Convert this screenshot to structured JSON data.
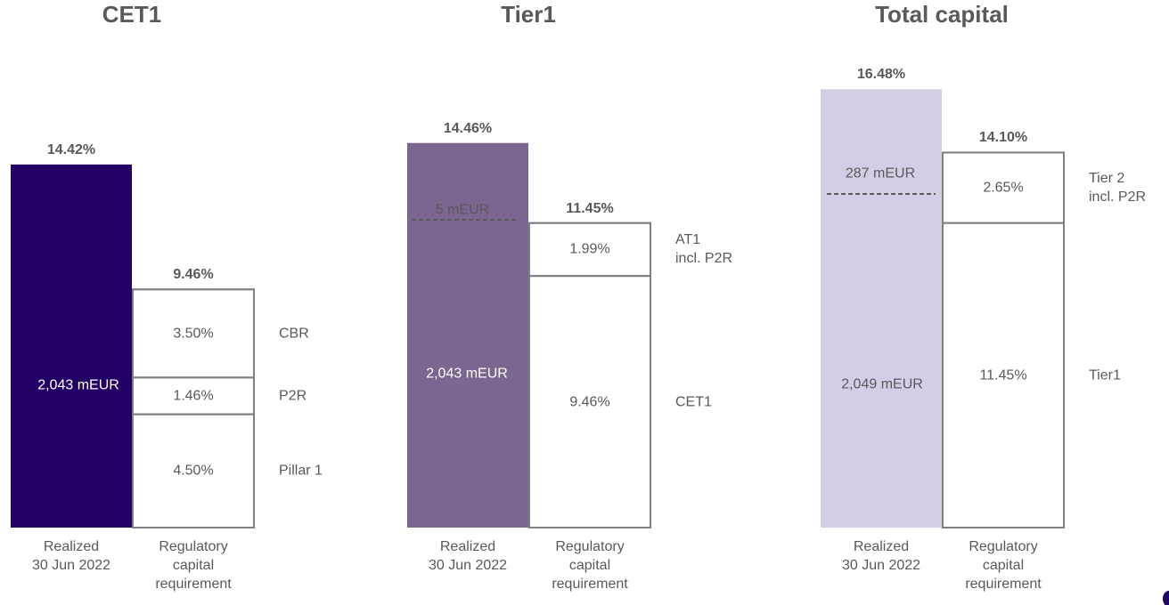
{
  "chart_data": [
    {
      "type": "bar",
      "title": "CET1",
      "color": "#230066",
      "annotation_color": "#ffffff",
      "categories": [
        "Realized\n30 Jun 2022",
        "Regulatory\ncapital\nrequirement"
      ],
      "values": [
        14.42,
        9.46
      ],
      "value_labels": [
        "14.42%",
        "9.46%"
      ],
      "ylim": [
        0,
        17.42
      ],
      "series": [
        {
          "name": "Pillar 1",
          "values": [
            null,
            4.5
          ],
          "value_labels": [
            null,
            "4.50%"
          ]
        },
        {
          "name": "P2R",
          "values": [
            null,
            1.46
          ],
          "value_labels": [
            null,
            "1.46%"
          ]
        },
        {
          "name": "CBR",
          "values": [
            null,
            3.5
          ],
          "value_labels": [
            null,
            "3.50%"
          ]
        }
      ],
      "annotations": [
        {
          "text": "2,043 mEUR"
        }
      ]
    },
    {
      "type": "bar",
      "title": "Tier1",
      "color": "#7a6691",
      "annotation_color": "#ffffff",
      "categories": [
        "Realized\n30 Jun 2022",
        "Regulatory\ncapital\nrequirement"
      ],
      "values": [
        14.46,
        11.45
      ],
      "value_labels": [
        "14.46%",
        "11.45%"
      ],
      "ylim": [
        0,
        16.49
      ],
      "series": [
        {
          "name": "CET1",
          "values": [
            null,
            9.46
          ],
          "value_labels": [
            null,
            "9.46%"
          ]
        },
        {
          "name": "AT1\nincl. P2R",
          "values": [
            null,
            1.99
          ],
          "value_labels": [
            null,
            "1.99%"
          ]
        }
      ],
      "annotations": [
        {
          "text": "2,043 mEUR"
        },
        {
          "text": "5 mEUR"
        }
      ]
    },
    {
      "type": "bar",
      "title": "Total capital",
      "color": "#d5cde6",
      "annotation_color": "#595959",
      "categories": [
        "Realized\n30 Jun 2022",
        "Regulatory\ncapital\nrequirement"
      ],
      "values": [
        16.48,
        14.1
      ],
      "value_labels": [
        "16.48%",
        "14.10%"
      ],
      "ylim": [
        0,
        16.49
      ],
      "series": [
        {
          "name": "Tier1",
          "values": [
            null,
            11.45
          ],
          "value_labels": [
            null,
            "11.45%"
          ]
        },
        {
          "name": "Tier 2\nincl. P2R",
          "values": [
            null,
            2.65
          ],
          "value_labels": [
            null,
            "2.65%"
          ]
        }
      ],
      "annotations": [
        {
          "text": "2,049 mEUR"
        },
        {
          "text": "287 mEUR"
        }
      ]
    }
  ]
}
